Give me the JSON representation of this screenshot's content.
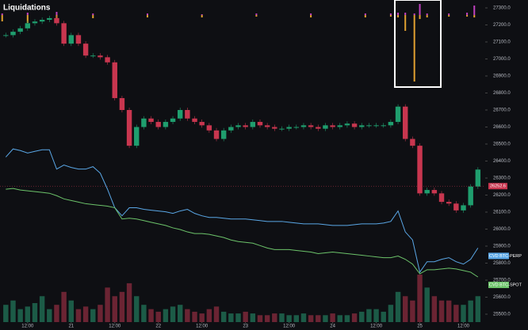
{
  "chart_data": {
    "type": "candlestick",
    "title": "Liquidations",
    "x": [
      6,
      8,
      10,
      12,
      14,
      16,
      18,
      20,
      22,
      24,
      26,
      28,
      30,
      32,
      34,
      36,
      38,
      40,
      42,
      44,
      46,
      48,
      50,
      52,
      54,
      56,
      58,
      60,
      62,
      64,
      66,
      68,
      70,
      72,
      74,
      76,
      78,
      80,
      82,
      84,
      86,
      88,
      90,
      92,
      94,
      96,
      98,
      100,
      102,
      104,
      106,
      108,
      110,
      112,
      114,
      116,
      118,
      120,
      122,
      124,
      126,
      128,
      130,
      132,
      134,
      136
    ],
    "close": [
      27140,
      27160,
      27180,
      27210,
      27220,
      27230,
      27240,
      27210,
      27090,
      27140,
      27090,
      27020,
      27020,
      27010,
      26980,
      26770,
      26700,
      26490,
      26600,
      26650,
      26630,
      26600,
      26630,
      26650,
      26700,
      26650,
      26630,
      26610,
      26580,
      26530,
      26580,
      26600,
      26610,
      26600,
      26630,
      26610,
      26600,
      26590,
      26590,
      26600,
      26600,
      26610,
      26600,
      26590,
      26610,
      26600,
      26610,
      26620,
      26600,
      26610,
      26610,
      26610,
      26610,
      26630,
      26720,
      26530,
      26490,
      26210,
      26230,
      26210,
      26160,
      26150,
      26110,
      26140,
      26250,
      26350
    ],
    "volume": [
      20,
      25,
      15,
      18,
      22,
      30,
      15,
      20,
      35,
      25,
      15,
      18,
      15,
      20,
      40,
      30,
      35,
      45,
      30,
      20,
      15,
      12,
      15,
      18,
      20,
      15,
      12,
      10,
      15,
      18,
      12,
      10,
      10,
      12,
      10,
      8,
      8,
      10,
      10,
      8,
      8,
      10,
      8,
      8,
      8,
      10,
      8,
      8,
      10,
      12,
      15,
      15,
      12,
      20,
      35,
      30,
      25,
      55,
      40,
      30,
      25,
      25,
      20,
      20,
      25,
      30
    ],
    "up_color": "#1f9e6e",
    "down_color": "#c8364f",
    "volume_up_color": "#1c5b47",
    "volume_down_color": "#6b2433",
    "last_price": 26252.6,
    "last_price_color": "#c8364f",
    "series": [
      {
        "name": "CVD BTC-PERP",
        "color": "#5aa7e6",
        "values": [
          205,
          215,
          213,
          210,
          212,
          214,
          214,
          190,
          195,
          192,
          190,
          190,
          193,
          185,
          165,
          142,
          132,
          142,
          142,
          140,
          139,
          138,
          137,
          135,
          138,
          140,
          135,
          132,
          130,
          130,
          129,
          128,
          128,
          128,
          127,
          126,
          125,
          125,
          125,
          124,
          123,
          122,
          122,
          122,
          121,
          120,
          120,
          120,
          121,
          122,
          122,
          122,
          123,
          125,
          138,
          112,
          102,
          62,
          75,
          75,
          78,
          80,
          75,
          72,
          78,
          92
        ]
      },
      {
        "name": "CVD BTC-SPOT",
        "color": "#6cc36a",
        "values": [
          165,
          166,
          164,
          163,
          162,
          161,
          160,
          157,
          153,
          151,
          149,
          147,
          146,
          145,
          144,
          142,
          128,
          129,
          128,
          126,
          124,
          122,
          120,
          117,
          115,
          112,
          110,
          110,
          109,
          107,
          105,
          102,
          100,
          99,
          98,
          95,
          92,
          90,
          90,
          90,
          89,
          88,
          87,
          85,
          86,
          87,
          86,
          85,
          84,
          83,
          82,
          81,
          80,
          80,
          82,
          78,
          72,
          60,
          65,
          65,
          66,
          67,
          66,
          64,
          62,
          56
        ]
      }
    ],
    "cvd_ylim": [
      0,
      400
    ],
    "liquidations": {
      "x": [
        5,
        12,
        20,
        30,
        45,
        60,
        75,
        90,
        105,
        112,
        114,
        116,
        118.5,
        120,
        122,
        128,
        133,
        135
      ],
      "long": [
        8,
        10,
        5,
        4,
        3,
        3,
        2,
        3,
        3,
        2,
        3,
        20,
        84,
        5,
        3,
        2,
        2,
        3
      ],
      "short": [
        2,
        3,
        4,
        2,
        2,
        1,
        2,
        2,
        2,
        2,
        3,
        3,
        2,
        14,
        2,
        2,
        3,
        12
      ],
      "long_color": "#e0a030",
      "short_color": "#c040c0"
    },
    "xlim": [
      4.4,
      138
    ],
    "xticks": [
      {
        "value": 12,
        "label": "12:00"
      },
      {
        "value": 24,
        "label": "21"
      },
      {
        "value": 36,
        "label": "12:00"
      },
      {
        "value": 48,
        "label": "22"
      },
      {
        "value": 60,
        "label": "12:00"
      },
      {
        "value": 72,
        "label": "23"
      },
      {
        "value": 84,
        "label": "12:00"
      },
      {
        "value": 96,
        "label": "24"
      },
      {
        "value": 108,
        "label": "12:00"
      },
      {
        "value": 120,
        "label": "25"
      },
      {
        "value": 132,
        "label": "12:00"
      }
    ],
    "ylim": [
      25453.5,
      27346.5
    ],
    "yticks": [
      {
        "value": 27300,
        "label": "27300.0"
      },
      {
        "value": 27200,
        "label": "27200.0"
      },
      {
        "value": 27100,
        "label": "27100.0"
      },
      {
        "value": 27000,
        "label": "27000.0"
      },
      {
        "value": 26900,
        "label": "26900.0"
      },
      {
        "value": 26800,
        "label": "26800.0"
      },
      {
        "value": 26700,
        "label": "26700.0"
      },
      {
        "value": 26600,
        "label": "26600.0"
      },
      {
        "value": 26500,
        "label": "26500.0"
      },
      {
        "value": 26400,
        "label": "26400.0"
      },
      {
        "value": 26300,
        "label": "26300.0"
      },
      {
        "value": 26200,
        "label": "26200.0"
      },
      {
        "value": 26100,
        "label": "26100.0"
      },
      {
        "value": 26000,
        "label": "26000.0"
      },
      {
        "value": 25900,
        "label": "25900.0"
      },
      {
        "value": 25800,
        "label": "25800.0"
      },
      {
        "value": 25700,
        "label": "25700.0"
      },
      {
        "value": 25600,
        "label": "25600.0"
      },
      {
        "value": 25500,
        "label": "25500.0"
      }
    ]
  }
}
